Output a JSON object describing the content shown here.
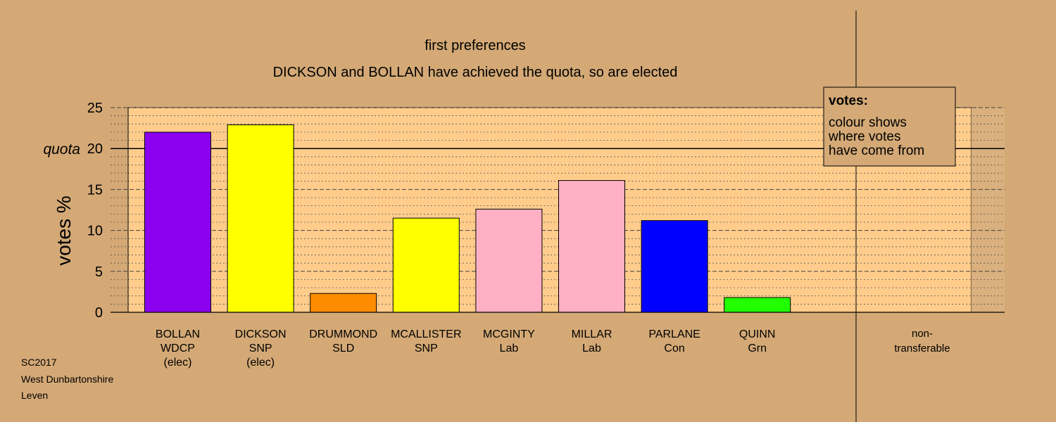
{
  "chart_data": {
    "type": "bar",
    "title": "first preferences",
    "subtitle": "DICKSON and BOLLAN have achieved the quota, so are elected",
    "ylabel": "votes %",
    "ylim": [
      0,
      25
    ],
    "yticks": [
      0,
      5,
      10,
      15,
      20,
      25
    ],
    "quota": 20,
    "quota_label": "quota",
    "grid": true,
    "categories": [
      {
        "lines": [
          "BOLLAN",
          "WDCP",
          "(elec)"
        ],
        "value": 22.0,
        "color": "#8b00ee"
      },
      {
        "lines": [
          "DICKSON",
          "SNP",
          "(elec)"
        ],
        "value": 22.9,
        "color": "#ffff00"
      },
      {
        "lines": [
          "DRUMMOND",
          "SLD"
        ],
        "value": 2.3,
        "color": "#ff8c00"
      },
      {
        "lines": [
          "MCALLISTER",
          "SNP"
        ],
        "value": 11.5,
        "color": "#ffff00"
      },
      {
        "lines": [
          "MCGINTY",
          "Lab"
        ],
        "value": 12.6,
        "color": "#ffb0c4"
      },
      {
        "lines": [
          "MILLAR",
          "Lab"
        ],
        "value": 16.1,
        "color": "#ffb0c4"
      },
      {
        "lines": [
          "PARLANE",
          "Con"
        ],
        "value": 11.2,
        "color": "#0000ff"
      },
      {
        "lines": [
          "QUINN",
          "Grn"
        ],
        "value": 1.8,
        "color": "#22ff00"
      }
    ],
    "nontransferable": {
      "lines": [
        "non-",
        "transferable"
      ],
      "value": 0
    },
    "legend": {
      "title": "votes:",
      "lines": [
        "colour shows",
        "where votes",
        "have come from"
      ],
      "position": "top-right"
    }
  },
  "footer": {
    "lines": [
      "SC2017",
      "West Dunbartonshire",
      "Leven"
    ]
  },
  "colors": {
    "background": "#d4a976",
    "plot_area": "#ffcc8c",
    "nontransferable_area": "#d9b07e"
  }
}
